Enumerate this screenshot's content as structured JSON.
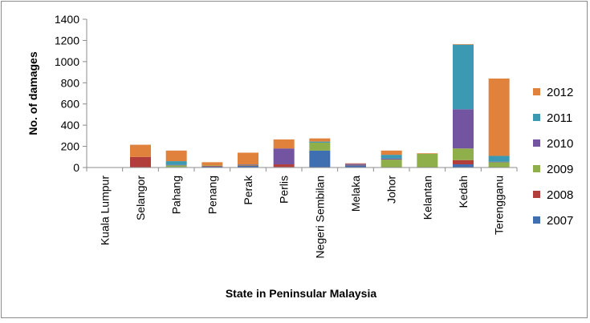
{
  "chart_data": {
    "type": "bar",
    "stacked": true,
    "title": "",
    "xlabel": "State in Peninsular Malaysia",
    "ylabel": "No. of damages",
    "ylim": [
      0,
      1400
    ],
    "yticks": [
      0,
      200,
      400,
      600,
      800,
      1000,
      1200,
      1400
    ],
    "grid": false,
    "legend_position": "right",
    "categories": [
      "Kuala Lumpur",
      "Selangor",
      "Pahang",
      "Penang",
      "Perak",
      "Perlis",
      "Negeri Sembilan",
      "Melaka",
      "Johor",
      "Kelantan",
      "Kedah",
      "Terengganu"
    ],
    "series": [
      {
        "name": "2007",
        "color": "#3f6fb0",
        "values": [
          0,
          0,
          5,
          10,
          15,
          5,
          160,
          20,
          0,
          0,
          30,
          0
        ]
      },
      {
        "name": "2008",
        "color": "#b13e3b",
        "values": [
          0,
          100,
          0,
          5,
          5,
          25,
          0,
          5,
          0,
          0,
          40,
          0
        ]
      },
      {
        "name": "2009",
        "color": "#8eaf4a",
        "values": [
          0,
          0,
          15,
          5,
          5,
          0,
          75,
          0,
          75,
          130,
          110,
          50
        ]
      },
      {
        "name": "2010",
        "color": "#7254a1",
        "values": [
          0,
          0,
          5,
          0,
          5,
          150,
          0,
          10,
          10,
          0,
          370,
          5
        ]
      },
      {
        "name": "2011",
        "color": "#3b99b1",
        "values": [
          0,
          0,
          35,
          0,
          0,
          0,
          10,
          0,
          35,
          0,
          610,
          55
        ]
      },
      {
        "name": "2012",
        "color": "#e0823b",
        "values": [
          0,
          115,
          100,
          30,
          110,
          85,
          30,
          5,
          40,
          5,
          5,
          730
        ]
      }
    ]
  }
}
